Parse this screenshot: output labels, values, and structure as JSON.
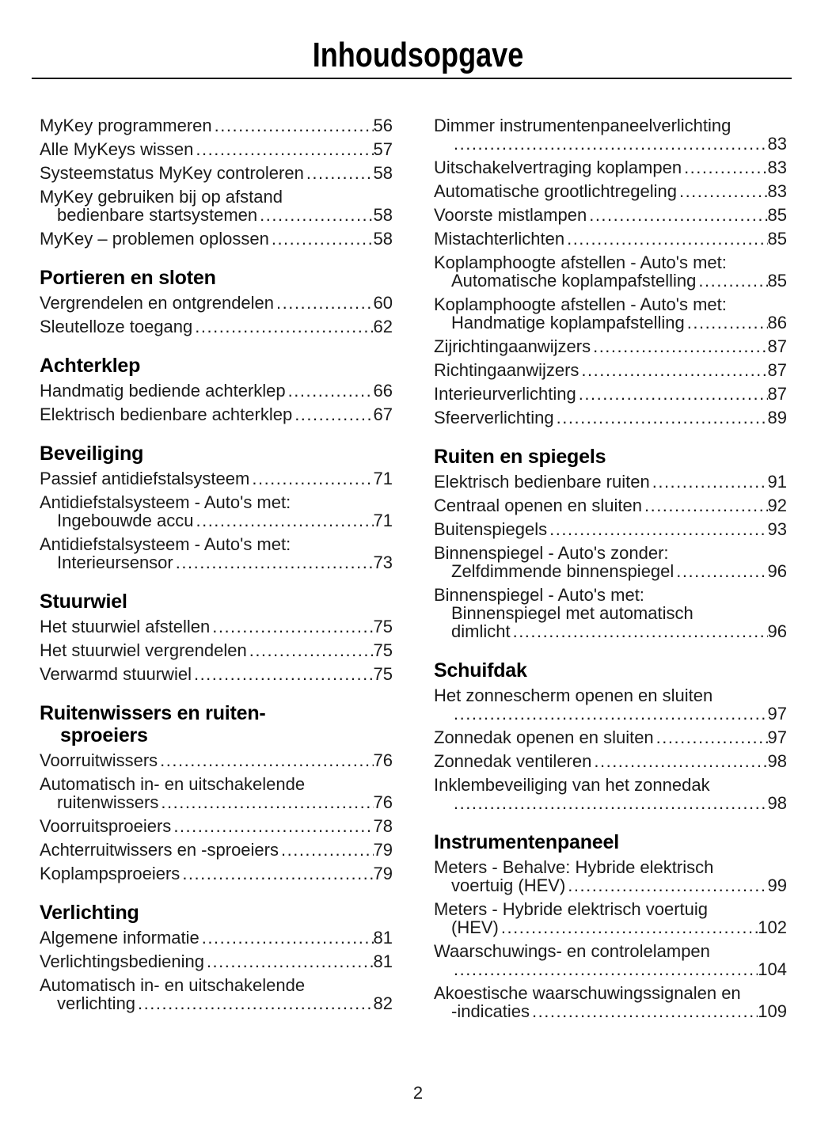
{
  "title": "Inhoudsopgave",
  "page_number": "2",
  "colors": {
    "ink": "#1a1a1a"
  },
  "columns": [
    {
      "sections": [
        {
          "title_lines": [],
          "entries": [
            {
              "lines": [
                "MyKey programmeren"
              ],
              "page": "56"
            },
            {
              "lines": [
                "Alle MyKeys wissen"
              ],
              "page": "57"
            },
            {
              "lines": [
                "Systeemstatus MyKey controleren"
              ],
              "page": "58"
            },
            {
              "lines": [
                "MyKey gebruiken bij op afstand",
                "bedienbare startsystemen"
              ],
              "page": "58"
            },
            {
              "lines": [
                "MyKey – problemen oplossen"
              ],
              "page": "58"
            }
          ]
        },
        {
          "title_lines": [
            "Portieren en sloten"
          ],
          "entries": [
            {
              "lines": [
                "Vergrendelen en ontgrendelen"
              ],
              "page": "60"
            },
            {
              "lines": [
                "Sleutelloze toegang"
              ],
              "page": "62"
            }
          ]
        },
        {
          "title_lines": [
            "Achterklep"
          ],
          "entries": [
            {
              "lines": [
                "Handmatig bediende achterklep"
              ],
              "page": "66"
            },
            {
              "lines": [
                "Elektrisch bedienbare achterklep"
              ],
              "page": "67"
            }
          ]
        },
        {
          "title_lines": [
            "Beveiliging"
          ],
          "entries": [
            {
              "lines": [
                "Passief antidiefstalsysteem"
              ],
              "page": "71"
            },
            {
              "lines": [
                "Antidiefstalsysteem - Auto's met:",
                "Ingebouwde accu"
              ],
              "page": "71"
            },
            {
              "lines": [
                "Antidiefstalsysteem - Auto's met:",
                "Interieursensor"
              ],
              "page": "73"
            }
          ]
        },
        {
          "title_lines": [
            "Stuurwiel"
          ],
          "entries": [
            {
              "lines": [
                "Het stuurwiel afstellen"
              ],
              "page": "75"
            },
            {
              "lines": [
                "Het stuurwiel vergrendelen"
              ],
              "page": "75"
            },
            {
              "lines": [
                "Verwarmd stuurwiel"
              ],
              "page": "75"
            }
          ]
        },
        {
          "title_lines": [
            "Ruitenwissers en ruiten-",
            "sproeiers"
          ],
          "entries": [
            {
              "lines": [
                "Voorruitwissers"
              ],
              "page": "76"
            },
            {
              "lines": [
                "Automatisch in- en uitschakelende",
                "ruitenwissers"
              ],
              "page": "76"
            },
            {
              "lines": [
                "Voorruitsproeiers"
              ],
              "page": "78"
            },
            {
              "lines": [
                "Achterruitwissers en -sproeiers"
              ],
              "page": "79"
            },
            {
              "lines": [
                "Koplampsproeiers"
              ],
              "page": "79"
            }
          ]
        },
        {
          "title_lines": [
            "Verlichting"
          ],
          "entries": [
            {
              "lines": [
                "Algemene informatie"
              ],
              "page": "81"
            },
            {
              "lines": [
                "Verlichtingsbediening"
              ],
              "page": "81"
            },
            {
              "lines": [
                "Automatisch in- en uitschakelende",
                "verlichting"
              ],
              "page": "82"
            }
          ]
        }
      ]
    },
    {
      "sections": [
        {
          "title_lines": [],
          "entries": [
            {
              "lines": [
                "Dimmer instrumentenpaneelverlichting",
                ""
              ],
              "page": "83"
            },
            {
              "lines": [
                "Uitschakelvertraging koplampen"
              ],
              "page": "83"
            },
            {
              "lines": [
                "Automatische grootlichtregeling"
              ],
              "page": "83"
            },
            {
              "lines": [
                "Voorste mistlampen"
              ],
              "page": "85"
            },
            {
              "lines": [
                "Mistachterlichten"
              ],
              "page": "85"
            },
            {
              "lines": [
                "Koplamphoogte afstellen - Auto's met:",
                "Automatische koplampafstelling"
              ],
              "page": "85"
            },
            {
              "lines": [
                "Koplamphoogte afstellen - Auto's met:",
                "Handmatige koplampafstelling"
              ],
              "page": "86"
            },
            {
              "lines": [
                "Zijrichtingaanwijzers"
              ],
              "page": "87"
            },
            {
              "lines": [
                "Richtingaanwijzers"
              ],
              "page": "87"
            },
            {
              "lines": [
                "Interieurverlichting"
              ],
              "page": "87"
            },
            {
              "lines": [
                "Sfeerverlichting"
              ],
              "page": "89"
            }
          ]
        },
        {
          "title_lines": [
            "Ruiten en spiegels"
          ],
          "entries": [
            {
              "lines": [
                "Elektrisch bedienbare ruiten"
              ],
              "page": "91"
            },
            {
              "lines": [
                "Centraal openen en sluiten"
              ],
              "page": "92"
            },
            {
              "lines": [
                "Buitenspiegels"
              ],
              "page": "93"
            },
            {
              "lines": [
                "Binnenspiegel - Auto's zonder:",
                "Zelfdimmende binnenspiegel"
              ],
              "page": "96"
            },
            {
              "lines": [
                "Binnenspiegel - Auto's met:",
                "Binnenspiegel met automatisch",
                "dimlicht"
              ],
              "page": "96"
            }
          ]
        },
        {
          "title_lines": [
            "Schuifdak"
          ],
          "entries": [
            {
              "lines": [
                "Het zonnescherm openen en sluiten",
                ""
              ],
              "page": "97"
            },
            {
              "lines": [
                "Zonnedak openen en sluiten"
              ],
              "page": "97"
            },
            {
              "lines": [
                "Zonnedak ventileren"
              ],
              "page": "98"
            },
            {
              "lines": [
                "Inklembeveiliging van het zonnedak",
                ""
              ],
              "page": "98"
            }
          ]
        },
        {
          "title_lines": [
            "Instrumentenpaneel"
          ],
          "entries": [
            {
              "lines": [
                "Meters - Behalve: Hybride elektrisch",
                "voertuig (HEV)"
              ],
              "page": "99"
            },
            {
              "lines": [
                "Meters - Hybride elektrisch voertuig",
                "(HEV)"
              ],
              "page": "102"
            },
            {
              "lines": [
                "Waarschuwings- en controlelampen",
                ""
              ],
              "page": "104"
            },
            {
              "lines": [
                "Akoestische waarschuwingssignalen en",
                "-indicaties"
              ],
              "page": "109"
            }
          ]
        }
      ]
    }
  ]
}
